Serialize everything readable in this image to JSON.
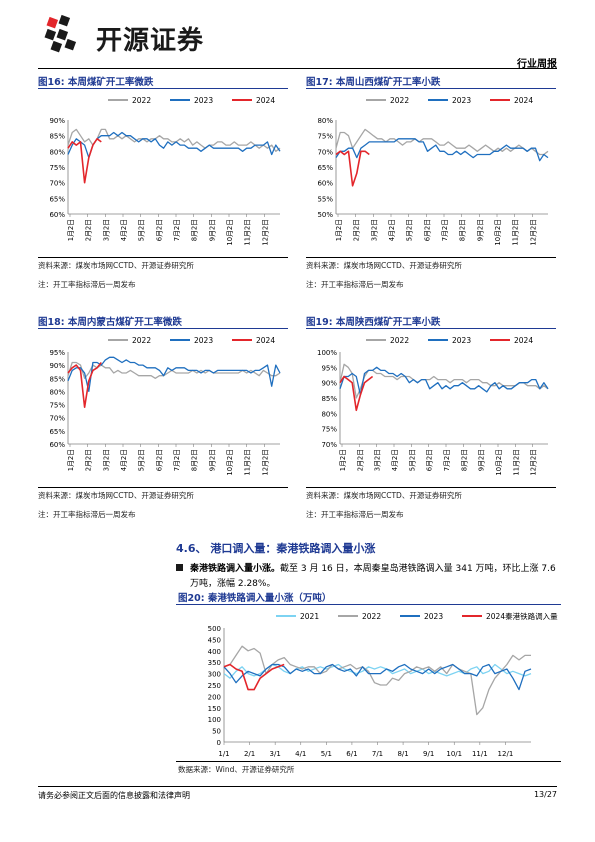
{
  "header": {
    "brand": "开源证券",
    "report_type": "行业周报"
  },
  "colors": {
    "y2021": "#7dd3f2",
    "y2022": "#a6a6a6",
    "y2023": "#1f6fbf",
    "y2024": "#e3262b",
    "title": "#1f3a93"
  },
  "figures": [
    {
      "label": "图16:",
      "title": "本周煤矿开工率微跌",
      "source": "资料来源：煤炭市场网CCTD、开源证券研究所",
      "note": "注：开工率指标滞后一周发布"
    },
    {
      "label": "图17:",
      "title": "本周山西煤矿开工率小跌",
      "source": "资料来源：煤炭市场网CCTD、开源证券研究所",
      "note": "注：开工率指标滞后一周发布"
    },
    {
      "label": "图18:",
      "title": "本周内蒙古煤矿开工率微跌",
      "source": "资料来源：煤炭市场网CCTD、开源证券研究所",
      "note": "注：开工率指标滞后一周发布"
    },
    {
      "label": "图19:",
      "title": "本周陕西煤矿开工率小跌",
      "source": "资料来源：煤炭市场网CCTD、开源证券研究所",
      "note": "注：开工率指标滞后一周发布"
    },
    {
      "label": "图20:",
      "title": "秦港铁路调入量小涨（万吨）",
      "source": "数据来源：Wind、开源证券研究所"
    }
  ],
  "section": {
    "number": "4.6、",
    "title": "港口调入量：秦港铁路调入量小涨",
    "para_lead": "秦港铁路调入量小涨。",
    "para_body": "截至 3 月 16 日，本周秦皇岛港铁路调入量 341 万吨，环比上涨 7.6 万吨，涨幅 2.28%。"
  },
  "footer": {
    "disclaimer": "请务必参阅正文后面的信息披露和法律声明",
    "page": "13/27"
  },
  "chart_data": [
    {
      "type": "line",
      "legend": [
        "2022",
        "2023",
        "2024"
      ],
      "y_ticks": [
        "90%",
        "85%",
        "80%",
        "75%",
        "70%",
        "65%",
        "60%"
      ],
      "ylim": [
        60,
        90
      ],
      "x_ticks": [
        "1月2日",
        "2月2日",
        "3月2日",
        "4月2日",
        "5月2日",
        "6月2日",
        "7月2日",
        "8月2日",
        "9月2日",
        "10月2日",
        "11月2日",
        "12月2日"
      ],
      "series": [
        {
          "name": "2022",
          "values": [
            82,
            86,
            87,
            85,
            83,
            84,
            82,
            84,
            87,
            87,
            84,
            84,
            85,
            84,
            85,
            84,
            83,
            84,
            84,
            83,
            84,
            84,
            85,
            84,
            84,
            83,
            83,
            84,
            83,
            84,
            82,
            83,
            82,
            81,
            82,
            82,
            83,
            83,
            82,
            82,
            83,
            82,
            82,
            82,
            83,
            82,
            81,
            82,
            81,
            82,
            80,
            81
          ]
        },
        {
          "name": "2023",
          "values": [
            79,
            82,
            84,
            83,
            82,
            78,
            82,
            84,
            85,
            85,
            85,
            86,
            85,
            86,
            85,
            85,
            84,
            83,
            84,
            84,
            83,
            84,
            82,
            81,
            83,
            82,
            83,
            82,
            82,
            81,
            81,
            81,
            80,
            81,
            82,
            81,
            81,
            81,
            81,
            81,
            81,
            81,
            80,
            81,
            81,
            82,
            82,
            82,
            83,
            79,
            82,
            80
          ]
        },
        {
          "name": "2024",
          "values": [
            81,
            83,
            82,
            83,
            70,
            78,
            82,
            84,
            83
          ]
        }
      ]
    },
    {
      "type": "line",
      "legend": [
        "2022",
        "2023",
        "2024"
      ],
      "y_ticks": [
        "80%",
        "75%",
        "70%",
        "65%",
        "60%",
        "55%",
        "50%"
      ],
      "ylim": [
        50,
        80
      ],
      "x_ticks": [
        "1月2日",
        "2月2日",
        "3月2日",
        "4月2日",
        "5月2日",
        "6月2日",
        "7月2日",
        "8月2日",
        "9月2日",
        "10月2日",
        "11月2日",
        "12月2日"
      ],
      "series": [
        {
          "name": "2022",
          "values": [
            71,
            76,
            76,
            75,
            71,
            73,
            75,
            77,
            76,
            75,
            74,
            74,
            73,
            74,
            74,
            73,
            72,
            73,
            73,
            74,
            73,
            74,
            74,
            74,
            73,
            72,
            72,
            73,
            72,
            71,
            71,
            71,
            72,
            71,
            70,
            71,
            72,
            71,
            70,
            71,
            70,
            71,
            70,
            71,
            72,
            71,
            70,
            71,
            70,
            69,
            69,
            70
          ]
        },
        {
          "name": "2023",
          "values": [
            68,
            70,
            70,
            71,
            71,
            68,
            71,
            72,
            73,
            73,
            73,
            73,
            73,
            73,
            73,
            74,
            74,
            74,
            74,
            74,
            73,
            73,
            70,
            71,
            72,
            70,
            70,
            69,
            69,
            70,
            69,
            70,
            69,
            68,
            69,
            69,
            69,
            69,
            70,
            70,
            71,
            72,
            71,
            71,
            71,
            71,
            70,
            71,
            71,
            67,
            69,
            68
          ]
        },
        {
          "name": "2024",
          "values": [
            69,
            70,
            69,
            70,
            59,
            63,
            70,
            70,
            69
          ]
        }
      ]
    },
    {
      "type": "line",
      "legend": [
        "2022",
        "2023",
        "2024"
      ],
      "y_ticks": [
        "95%",
        "90%",
        "85%",
        "80%",
        "75%",
        "70%",
        "65%",
        "60%"
      ],
      "ylim": [
        60,
        95
      ],
      "x_ticks": [
        "1月2日",
        "2月2日",
        "3月2日",
        "4月2日",
        "5月2日",
        "6月2日",
        "7月2日",
        "8月2日",
        "9月2日",
        "10月2日",
        "11月2日",
        "12月2日"
      ],
      "series": [
        {
          "name": "2022",
          "values": [
            86,
            91,
            91,
            90,
            85,
            87,
            90,
            89,
            90,
            89,
            89,
            87,
            88,
            87,
            87,
            88,
            87,
            86,
            86,
            86,
            86,
            85,
            86,
            86,
            87,
            88,
            87,
            87,
            87,
            87,
            88,
            87,
            88,
            87,
            88,
            87,
            87,
            87,
            87,
            87,
            87,
            87,
            88,
            87,
            88,
            87,
            86,
            88,
            87,
            86,
            86,
            87
          ]
        },
        {
          "name": "2023",
          "values": [
            84,
            88,
            89,
            89,
            87,
            80,
            91,
            91,
            90,
            92,
            93,
            93,
            92,
            91,
            92,
            91,
            91,
            90,
            90,
            89,
            89,
            89,
            88,
            86,
            89,
            88,
            89,
            89,
            89,
            88,
            88,
            88,
            87,
            88,
            88,
            87,
            88,
            88,
            88,
            88,
            88,
            88,
            88,
            88,
            87,
            88,
            88,
            89,
            90,
            82,
            90,
            87
          ]
        },
        {
          "name": "2024",
          "values": [
            87,
            89,
            90,
            88,
            74,
            84,
            88,
            89,
            91
          ]
        }
      ]
    },
    {
      "type": "line",
      "legend": [
        "2022",
        "2023",
        "2024"
      ],
      "y_ticks": [
        "100%",
        "95%",
        "90%",
        "85%",
        "80%",
        "75%",
        "70%"
      ],
      "ylim": [
        70,
        100
      ],
      "x_ticks": [
        "1月2日",
        "2月2日",
        "3月2日",
        "4月2日",
        "5月2日",
        "6月2日",
        "7月2日",
        "8月2日",
        "9月2日",
        "10月2日",
        "11月2日",
        "12月2日"
      ],
      "series": [
        {
          "name": "2022",
          "values": [
            90,
            96,
            95,
            93,
            85,
            88,
            92,
            94,
            94,
            93,
            93,
            92,
            92,
            92,
            91,
            92,
            92,
            92,
            91,
            90,
            91,
            91,
            91,
            92,
            91,
            91,
            91,
            90,
            91,
            91,
            91,
            90,
            91,
            91,
            91,
            90,
            90,
            89,
            89,
            90,
            89,
            89,
            89,
            89,
            90,
            90,
            89,
            89,
            89,
            88,
            89,
            88
          ]
        },
        {
          "name": "2023",
          "values": [
            88,
            92,
            92,
            93,
            92,
            86,
            93,
            94,
            94,
            95,
            94,
            94,
            93,
            93,
            92,
            93,
            92,
            90,
            91,
            90,
            91,
            91,
            88,
            89,
            90,
            88,
            89,
            88,
            89,
            89,
            90,
            89,
            88,
            88,
            89,
            88,
            87,
            89,
            90,
            88,
            89,
            88,
            88,
            89,
            90,
            90,
            90,
            91,
            91,
            88,
            90,
            88
          ]
        },
        {
          "name": "2024",
          "values": [
            90,
            92,
            91,
            90,
            81,
            86,
            90,
            91,
            92
          ]
        }
      ]
    },
    {
      "type": "line",
      "legend": [
        "2021",
        "2022",
        "2023",
        "2024秦港铁路调入量"
      ],
      "y_ticks": [
        "500",
        "450",
        "400",
        "350",
        "300",
        "250",
        "200",
        "150",
        "100",
        "50",
        "0"
      ],
      "ylim": [
        0,
        500
      ],
      "x_ticks": [
        "1/1",
        "2/1",
        "3/1",
        "4/1",
        "5/1",
        "6/1",
        "7/1",
        "8/1",
        "9/1",
        "10/1",
        "11/1",
        "12/1"
      ],
      "series": [
        {
          "name": "2021",
          "values": [
            300,
            280,
            310,
            330,
            300,
            290,
            300,
            320,
            340,
            330,
            310,
            300,
            320,
            330,
            310,
            320,
            330,
            320,
            330,
            340,
            320,
            310,
            300,
            310,
            330,
            320,
            330,
            320,
            300,
            310,
            320,
            300,
            310,
            320,
            300,
            310,
            300,
            290,
            300,
            310,
            300,
            320,
            330,
            300,
            310,
            340,
            320,
            300,
            310,
            300,
            290,
            300
          ]
        },
        {
          "name": "2022",
          "values": [
            330,
            340,
            380,
            420,
            400,
            410,
            390,
            300,
            340,
            360,
            370,
            340,
            330,
            320,
            330,
            330,
            300,
            310,
            340,
            320,
            330,
            340,
            320,
            330,
            310,
            260,
            250,
            250,
            280,
            270,
            300,
            310,
            330,
            320,
            330,
            310,
            330,
            300,
            340,
            320,
            310,
            300,
            120,
            150,
            230,
            280,
            310,
            340,
            380,
            360,
            380,
            380
          ]
        },
        {
          "name": "2023",
          "values": [
            330,
            300,
            260,
            290,
            310,
            300,
            290,
            320,
            340,
            340,
            330,
            300,
            320,
            310,
            320,
            300,
            300,
            330,
            340,
            320,
            310,
            320,
            290,
            330,
            300,
            300,
            300,
            320,
            310,
            330,
            340,
            320,
            310,
            300,
            320,
            300,
            320,
            330,
            340,
            320,
            300,
            300,
            290,
            330,
            340,
            300,
            310,
            320,
            280,
            230,
            310,
            320
          ]
        },
        {
          "name": "2024",
          "values": [
            330,
            340,
            320,
            310,
            230,
            230,
            280,
            300,
            320,
            330,
            340
          ]
        }
      ]
    }
  ]
}
